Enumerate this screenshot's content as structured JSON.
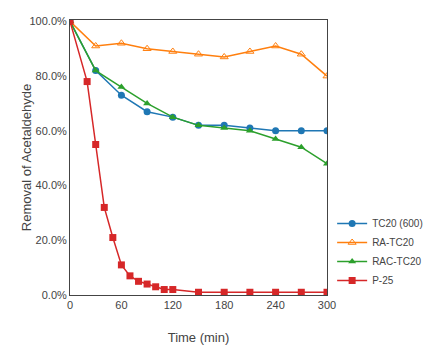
{
  "chart_data": {
    "type": "line",
    "xlabel": "Time (min)",
    "ylabel": "Removal of Acetaldehyde",
    "series": [
      {
        "name": "TC20 (600)",
        "marker": "circle",
        "line_style": "solid",
        "x": [
          0,
          30,
          60,
          90,
          120,
          150,
          180,
          210,
          240,
          270,
          300
        ],
        "values": [
          1.0,
          0.82,
          0.73,
          0.67,
          0.65,
          0.62,
          0.62,
          0.61,
          0.6,
          0.6,
          0.6
        ]
      },
      {
        "name": "RA-TC20",
        "marker": "triangle-up-open",
        "line_style": "solid",
        "x": [
          0,
          30,
          60,
          90,
          120,
          150,
          180,
          210,
          240,
          270,
          300
        ],
        "values": [
          1.0,
          0.91,
          0.92,
          0.9,
          0.89,
          0.88,
          0.87,
          0.89,
          0.91,
          0.88,
          0.8
        ]
      },
      {
        "name": "RAC-TC20",
        "marker": "triangle-up",
        "line_style": "solid",
        "x": [
          0,
          30,
          60,
          90,
          120,
          150,
          180,
          210,
          240,
          270,
          300
        ],
        "values": [
          1.0,
          0.82,
          0.76,
          0.7,
          0.65,
          0.62,
          0.61,
          0.6,
          0.57,
          0.54,
          0.48
        ]
      },
      {
        "name": "P-25",
        "marker": "square",
        "line_style": "solid",
        "x": [
          0,
          20,
          30,
          40,
          50,
          60,
          70,
          80,
          90,
          100,
          110,
          120,
          150,
          180,
          210,
          240,
          270,
          300
        ],
        "values": [
          1.0,
          0.78,
          0.55,
          0.32,
          0.21,
          0.11,
          0.07,
          0.05,
          0.04,
          0.03,
          0.02,
          0.02,
          0.01,
          0.01,
          0.01,
          0.01,
          0.01,
          0.01
        ]
      }
    ],
    "xlim": [
      0,
      300
    ],
    "ylim": [
      0.0,
      1.005
    ],
    "xticks": [
      0,
      60,
      120,
      180,
      240,
      300
    ],
    "yticks": [
      {
        "value": 0.0,
        "label": "0.0%"
      },
      {
        "value": 0.2,
        "label": "20.0%"
      },
      {
        "value": 0.4,
        "label": "40.0%"
      },
      {
        "value": 0.6,
        "label": "60.0%"
      },
      {
        "value": 0.8,
        "label": "80.0%"
      },
      {
        "value": 1.0,
        "label": "100.0%"
      }
    ],
    "grid": false,
    "legend": "lower right"
  }
}
